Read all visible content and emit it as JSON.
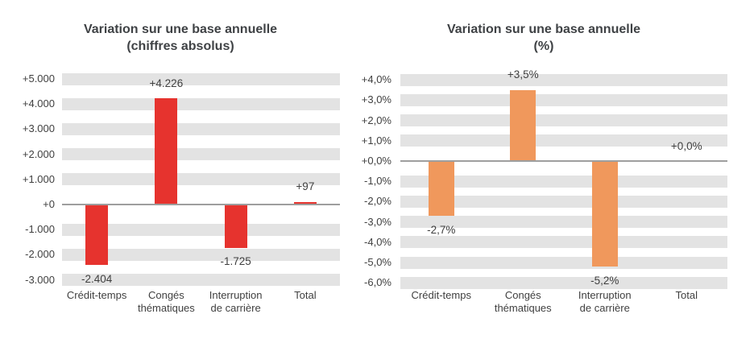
{
  "chart_data": [
    {
      "type": "bar",
      "title": "Variation sur une base annuelle (chiffres absolus)",
      "title_line1": "Variation sur une base annuelle",
      "title_line2": "(chiffres absolus)",
      "categories": [
        "Crédit-temps",
        "Congés thématiques",
        "Interruption de carrière",
        "Total"
      ],
      "category_label_lines": [
        [
          "Crédit-temps"
        ],
        [
          "Congés",
          "thématiques"
        ],
        [
          "Interruption",
          "de carrière"
        ],
        [
          "Total"
        ]
      ],
      "values": [
        -2404,
        4226,
        -1725,
        97
      ],
      "data_labels": [
        "-2.404",
        "+4.226",
        "-1.725",
        "+97"
      ],
      "ylim": [
        -3000,
        5000
      ],
      "ytick_step": 1000,
      "ytick_labels": [
        "+5.000",
        "+4.000",
        "+3.000",
        "+2.000",
        "+1.000",
        "+0",
        "-1.000",
        "-2.000",
        "-3.000"
      ],
      "xlabel": "",
      "ylabel": "",
      "legend": "none",
      "grid": "horizontal striped bands",
      "bar_color": "#e6332e",
      "stripe_color": "#e3e3e3",
      "axis_color": "#9e9e9e",
      "text_color": "#404040"
    },
    {
      "type": "bar",
      "title": "Variation sur une base annuelle (%)",
      "title_line1": "Variation sur une base annuelle",
      "title_line2": "(%)",
      "categories": [
        "Crédit-temps",
        "Congés thématiques",
        "Interruption de carrière",
        "Total"
      ],
      "category_label_lines": [
        [
          "Crédit-temps"
        ],
        [
          "Congés",
          "thématiques"
        ],
        [
          "Interruption",
          "de carrière"
        ],
        [
          "Total"
        ]
      ],
      "values": [
        -2.7,
        3.5,
        -5.2,
        0.0
      ],
      "data_labels": [
        "-2,7%",
        "+3,5%",
        "-5,2%",
        "+0,0%"
      ],
      "ylim": [
        -6,
        4
      ],
      "ytick_step": 1,
      "ytick_labels": [
        "+4,0%",
        "+3,0%",
        "+2,0%",
        "+1,0%",
        "+0,0%",
        "-1,0%",
        "-2,0%",
        "-3,0%",
        "-4,0%",
        "-5,0%",
        "-6,0%"
      ],
      "xlabel": "",
      "ylabel": "",
      "legend": "none",
      "grid": "horizontal striped bands",
      "bar_color": "#f0985c",
      "stripe_color": "#e3e3e3",
      "axis_color": "#9e9e9e",
      "text_color": "#404040"
    }
  ]
}
